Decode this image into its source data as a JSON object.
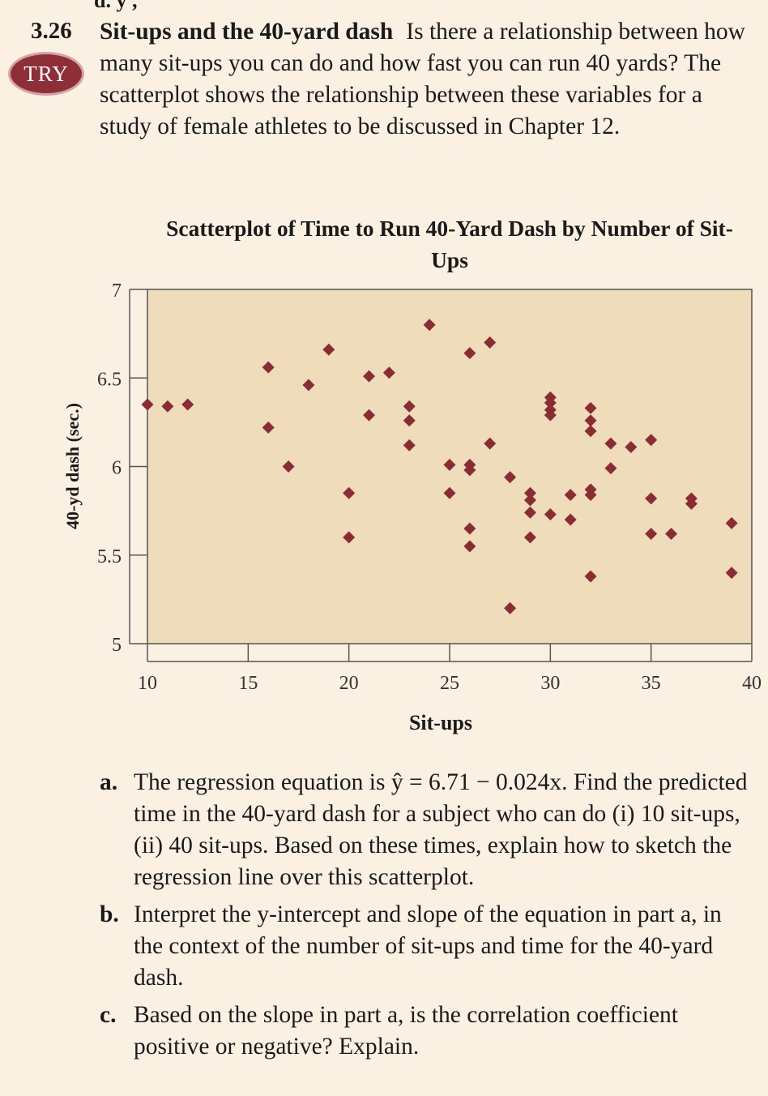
{
  "cut_text": "d. y ,",
  "exercise": {
    "number": "3.26",
    "badge": "TRY",
    "title": "Sit-ups and the 40-yard dash",
    "body": "Is there a relationship between how many sit-ups you can do and how fast you can run 40 yards? The scatterplot shows the relationship between these variables for a study of female athletes to be discussed in Chapter 12."
  },
  "chart_data": {
    "type": "scatter",
    "title": "Scatterplot of Time to Run 40-Yard Dash by Number of Sit-Ups",
    "xlabel": "Sit-ups",
    "ylabel": "40-yd dash (sec.)",
    "xlim": [
      10,
      40
    ],
    "ylim": [
      5,
      7
    ],
    "x_ticks": [
      "10",
      "15",
      "20",
      "25",
      "30",
      "35",
      "40"
    ],
    "y_ticks": [
      "5",
      "5.5",
      "6",
      "6.5",
      "7"
    ],
    "grid": false,
    "marker": "diamond",
    "colors": {
      "plot_bg": "#eedcbb",
      "marker": "#8b2c35",
      "axis": "#555555"
    },
    "points": [
      [
        10,
        6.35
      ],
      [
        11,
        6.34
      ],
      [
        12,
        6.35
      ],
      [
        16,
        6.56
      ],
      [
        16,
        6.22
      ],
      [
        17,
        6.0
      ],
      [
        18,
        6.46
      ],
      [
        19,
        6.66
      ],
      [
        20,
        5.85
      ],
      [
        20,
        5.6
      ],
      [
        21,
        6.51
      ],
      [
        21,
        6.29
      ],
      [
        22,
        6.53
      ],
      [
        23,
        6.34
      ],
      [
        23,
        6.26
      ],
      [
        23,
        6.12
      ],
      [
        24,
        6.8
      ],
      [
        25,
        6.01
      ],
      [
        25,
        5.85
      ],
      [
        26,
        6.64
      ],
      [
        26,
        6.01
      ],
      [
        26,
        5.98
      ],
      [
        26,
        5.65
      ],
      [
        26,
        5.55
      ],
      [
        27,
        6.7
      ],
      [
        27,
        6.13
      ],
      [
        28,
        5.94
      ],
      [
        28,
        5.2
      ],
      [
        29,
        5.85
      ],
      [
        29,
        5.81
      ],
      [
        29,
        5.74
      ],
      [
        29,
        5.6
      ],
      [
        30,
        6.39
      ],
      [
        30,
        6.36
      ],
      [
        30,
        6.32
      ],
      [
        30,
        6.29
      ],
      [
        30,
        5.73
      ],
      [
        31,
        5.84
      ],
      [
        31,
        5.7
      ],
      [
        32,
        6.33
      ],
      [
        32,
        6.26
      ],
      [
        32,
        6.2
      ],
      [
        32,
        5.87
      ],
      [
        32,
        5.84
      ],
      [
        32,
        5.38
      ],
      [
        33,
        6.13
      ],
      [
        33,
        5.99
      ],
      [
        34,
        6.11
      ],
      [
        35,
        6.15
      ],
      [
        35,
        5.82
      ],
      [
        35,
        5.62
      ],
      [
        36,
        5.62
      ],
      [
        37,
        5.82
      ],
      [
        37,
        5.79
      ],
      [
        39,
        5.68
      ],
      [
        39,
        5.4
      ]
    ]
  },
  "questions": [
    {
      "label": "a.",
      "text": "The regression equation is ŷ = 6.71 − 0.024x. Find the predicted time in the 40-yard dash for a subject who can do (i) 10 sit-ups, (ii) 40 sit-ups. Based on these times, explain how to sketch the regression line over this scatterplot."
    },
    {
      "label": "b.",
      "text": "Interpret the y-intercept and slope of the equation in part a, in the context of the number of sit-ups and time for the 40-yard dash."
    },
    {
      "label": "c.",
      "text": "Based on the slope in part a, is the correlation coefficient positive or negative? Explain."
    }
  ]
}
